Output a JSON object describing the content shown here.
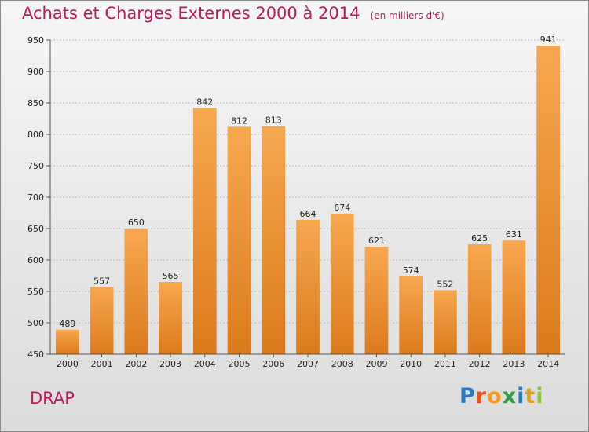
{
  "header": {
    "title": "Achats et Charges Externes 2000 à 2014",
    "unit": "(en milliers d'€)"
  },
  "footer": {
    "location": "DRAP",
    "brand": "Proxiti",
    "brand_colors": [
      "#2b7bc0",
      "#e6531e",
      "#f39c1f",
      "#2f9e44",
      "#2b7bc0",
      "#e3a21a",
      "#8cc63f"
    ]
  },
  "colors": {
    "bar_top": "#f7a84f",
    "bar_bottom": "#dc7a1c",
    "grid": "#bdbdbd",
    "title": "#c2185b"
  },
  "chart_data": {
    "type": "bar",
    "categories": [
      "2000",
      "2001",
      "2002",
      "2003",
      "2004",
      "2005",
      "2006",
      "2007",
      "2008",
      "2009",
      "2010",
      "2011",
      "2012",
      "2013",
      "2014"
    ],
    "values": [
      489,
      557,
      650,
      565,
      842,
      812,
      813,
      664,
      674,
      621,
      574,
      552,
      625,
      631,
      941
    ],
    "ylim": [
      450,
      950
    ],
    "yticks": [
      450,
      500,
      550,
      600,
      650,
      700,
      750,
      800,
      850,
      900,
      950
    ],
    "grid": true,
    "legend": "none"
  }
}
